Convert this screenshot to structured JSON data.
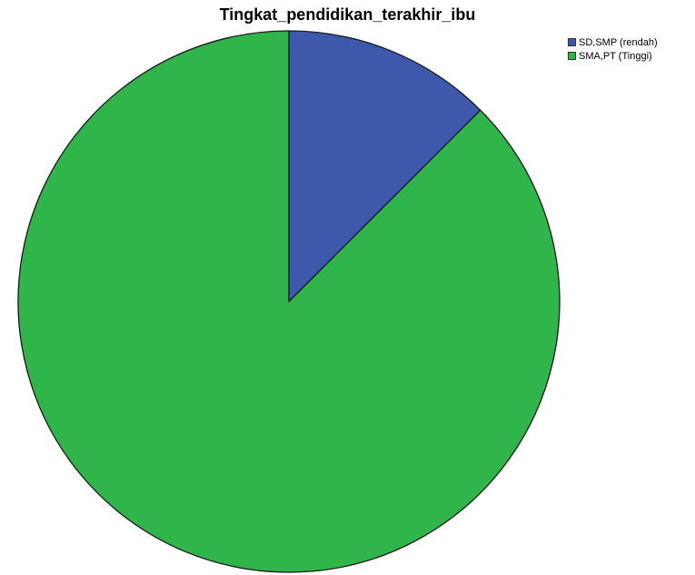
{
  "chart_data": {
    "type": "pie",
    "title": "Tingkat_pendidikan_terakhir_ibu",
    "categories": [
      "SD,SMP (rendah)",
      "SMA,PT (Tinggi)"
    ],
    "values": [
      12.5,
      87.5
    ],
    "colors": [
      "#3e58ac",
      "#2fb54a"
    ],
    "legend_position": "top-right"
  }
}
